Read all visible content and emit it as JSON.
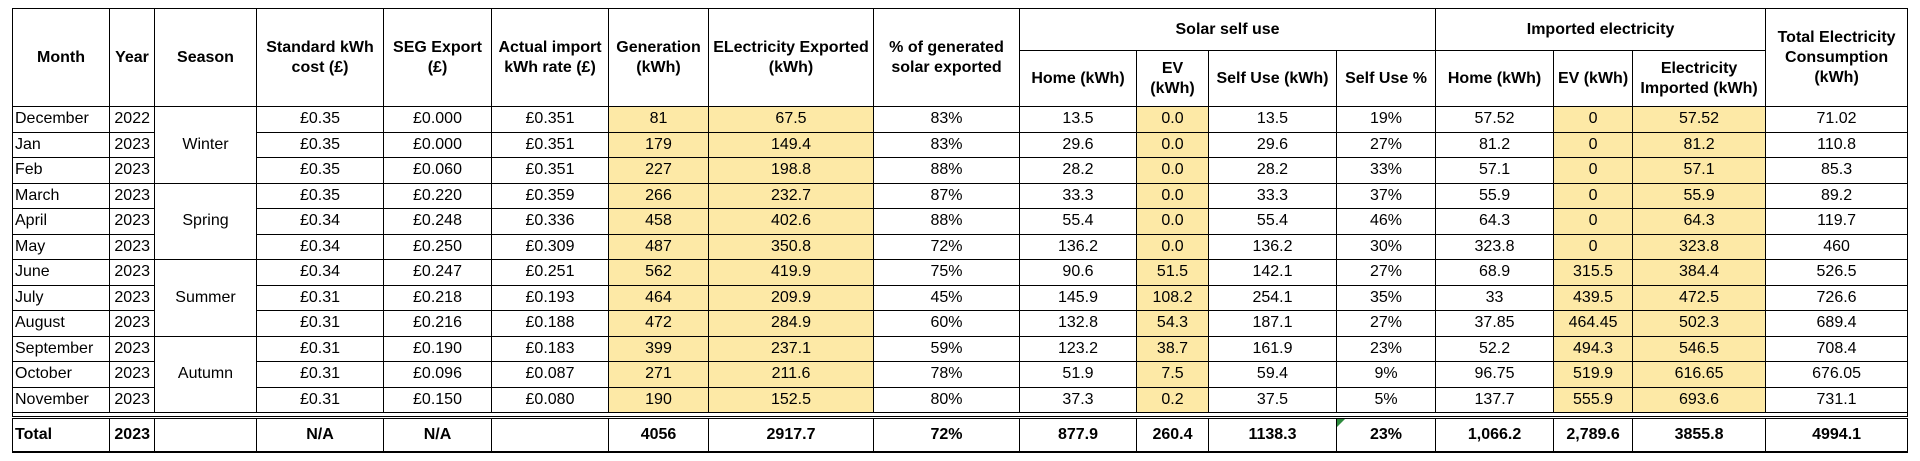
{
  "headers": {
    "month": "Month",
    "year": "Year",
    "season": "Season",
    "std_cost": "Standard kWh cost (£)",
    "seg_export": "SEG Export (£)",
    "import_rate": "Actual import kWh rate (£)",
    "generation": "Generation (kWh)",
    "exported": "ELectricity Exported (kWh)",
    "pct_exported": "% of generated solar exported",
    "solar_group": "Solar self use",
    "imported_group": "Imported electricity",
    "total_consumption": "Total Electricity Consumption (kWh)",
    "solar_home": "Home (kWh)",
    "solar_ev": "EV (kWh)",
    "self_use": "Self Use (kWh)",
    "self_use_pct": "Self Use %",
    "imp_home": "Home (kWh)",
    "imp_ev": "EV (kWh)",
    "imp_total": "Electricity Imported (kWh)"
  },
  "seasons": [
    "Winter",
    "Spring",
    "Summer",
    "Autumn"
  ],
  "rows": [
    {
      "month": "December",
      "year": "2022",
      "std": "£0.35",
      "seg": "£0.000",
      "imp_rate": "£0.351",
      "gen": "81",
      "exp": "67.5",
      "pct": "83%",
      "s_home": "13.5",
      "s_ev": "0.0",
      "self": "13.5",
      "self_pct": "19%",
      "i_home": "57.52",
      "i_ev": "0",
      "i_tot": "57.52",
      "total": "71.02"
    },
    {
      "month": "Jan",
      "year": "2023",
      "std": "£0.35",
      "seg": "£0.000",
      "imp_rate": "£0.351",
      "gen": "179",
      "exp": "149.4",
      "pct": "83%",
      "s_home": "29.6",
      "s_ev": "0.0",
      "self": "29.6",
      "self_pct": "27%",
      "i_home": "81.2",
      "i_ev": "0",
      "i_tot": "81.2",
      "total": "110.8"
    },
    {
      "month": "Feb",
      "year": "2023",
      "std": "£0.35",
      "seg": "£0.060",
      "imp_rate": "£0.351",
      "gen": "227",
      "exp": "198.8",
      "pct": "88%",
      "s_home": "28.2",
      "s_ev": "0.0",
      "self": "28.2",
      "self_pct": "33%",
      "i_home": "57.1",
      "i_ev": "0",
      "i_tot": "57.1",
      "total": "85.3"
    },
    {
      "month": "March",
      "year": "2023",
      "std": "£0.35",
      "seg": "£0.220",
      "imp_rate": "£0.359",
      "gen": "266",
      "exp": "232.7",
      "pct": "87%",
      "s_home": "33.3",
      "s_ev": "0.0",
      "self": "33.3",
      "self_pct": "37%",
      "i_home": "55.9",
      "i_ev": "0",
      "i_tot": "55.9",
      "total": "89.2"
    },
    {
      "month": "April",
      "year": "2023",
      "std": "£0.34",
      "seg": "£0.248",
      "imp_rate": "£0.336",
      "gen": "458",
      "exp": "402.6",
      "pct": "88%",
      "s_home": "55.4",
      "s_ev": "0.0",
      "self": "55.4",
      "self_pct": "46%",
      "i_home": "64.3",
      "i_ev": "0",
      "i_tot": "64.3",
      "total": "119.7"
    },
    {
      "month": "May",
      "year": "2023",
      "std": "£0.34",
      "seg": "£0.250",
      "imp_rate": "£0.309",
      "gen": "487",
      "exp": "350.8",
      "pct": "72%",
      "s_home": "136.2",
      "s_ev": "0.0",
      "self": "136.2",
      "self_pct": "30%",
      "i_home": "323.8",
      "i_ev": "0",
      "i_tot": "323.8",
      "total": "460"
    },
    {
      "month": "June",
      "year": "2023",
      "std": "£0.34",
      "seg": "£0.247",
      "imp_rate": "£0.251",
      "gen": "562",
      "exp": "419.9",
      "pct": "75%",
      "s_home": "90.6",
      "s_ev": "51.5",
      "self": "142.1",
      "self_pct": "27%",
      "i_home": "68.9",
      "i_ev": "315.5",
      "i_tot": "384.4",
      "total": "526.5"
    },
    {
      "month": "July",
      "year": "2023",
      "std": "£0.31",
      "seg": "£0.218",
      "imp_rate": "£0.193",
      "gen": "464",
      "exp": "209.9",
      "pct": "45%",
      "s_home": "145.9",
      "s_ev": "108.2",
      "self": "254.1",
      "self_pct": "35%",
      "i_home": "33",
      "i_ev": "439.5",
      "i_tot": "472.5",
      "total": "726.6"
    },
    {
      "month": "August",
      "year": "2023",
      "std": "£0.31",
      "seg": "£0.216",
      "imp_rate": "£0.188",
      "gen": "472",
      "exp": "284.9",
      "pct": "60%",
      "s_home": "132.8",
      "s_ev": "54.3",
      "self": "187.1",
      "self_pct": "27%",
      "i_home": "37.85",
      "i_ev": "464.45",
      "i_tot": "502.3",
      "total": "689.4"
    },
    {
      "month": "September",
      "year": "2023",
      "std": "£0.31",
      "seg": "£0.190",
      "imp_rate": "£0.183",
      "gen": "399",
      "exp": "237.1",
      "pct": "59%",
      "s_home": "123.2",
      "s_ev": "38.7",
      "self": "161.9",
      "self_pct": "23%",
      "i_home": "52.2",
      "i_ev": "494.3",
      "i_tot": "546.5",
      "total": "708.4"
    },
    {
      "month": "October",
      "year": "2023",
      "std": "£0.31",
      "seg": "£0.096",
      "imp_rate": "£0.087",
      "gen": "271",
      "exp": "211.6",
      "pct": "78%",
      "s_home": "51.9",
      "s_ev": "7.5",
      "self": "59.4",
      "self_pct": "9%",
      "i_home": "96.75",
      "i_ev": "519.9",
      "i_tot": "616.65",
      "total": "676.05"
    },
    {
      "month": "November",
      "year": "2023",
      "std": "£0.31",
      "seg": "£0.150",
      "imp_rate": "£0.080",
      "gen": "190",
      "exp": "152.5",
      "pct": "80%",
      "s_home": "37.3",
      "s_ev": "0.2",
      "self": "37.5",
      "self_pct": "5%",
      "i_home": "137.7",
      "i_ev": "555.9",
      "i_tot": "693.6",
      "total": "731.1"
    }
  ],
  "total": {
    "label": "Total",
    "year": "2023",
    "std": "N/A",
    "seg": "N/A",
    "imp_rate": "",
    "gen": "4056",
    "exp": "2917.7",
    "pct": "72%",
    "s_home": "877.9",
    "s_ev": "260.4",
    "self": "1138.3",
    "self_pct": "23%",
    "i_home": "1,066.2",
    "i_ev": "2,789.6",
    "i_tot": "3855.8",
    "total": "4994.1"
  },
  "colors": {
    "highlight": "#fde9a6",
    "error_marker": "#2e8b3e"
  }
}
